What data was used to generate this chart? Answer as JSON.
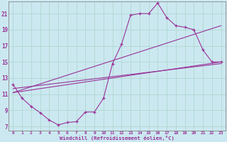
{
  "xlabel": "Windchill (Refroidissement éolien,°C)",
  "bg_color": "#cbe8f0",
  "grid_color": "#aad4cc",
  "line_color": "#993399",
  "spine_color": "#888888",
  "xlim": [
    -0.5,
    23.5
  ],
  "ylim": [
    6.5,
    22.5
  ],
  "xticks": [
    0,
    1,
    2,
    3,
    4,
    5,
    6,
    7,
    8,
    9,
    10,
    11,
    12,
    13,
    14,
    15,
    16,
    17,
    18,
    19,
    20,
    21,
    22,
    23
  ],
  "yticks": [
    7,
    9,
    11,
    13,
    15,
    17,
    19,
    21
  ],
  "main_curve_x": [
    0,
    1,
    2,
    3,
    4,
    5,
    6,
    7,
    8,
    9,
    10,
    11,
    12,
    13,
    14,
    15,
    16,
    17,
    18,
    19,
    20,
    21,
    22,
    23
  ],
  "main_curve_y": [
    12.2,
    10.5,
    9.5,
    8.7,
    7.8,
    7.2,
    7.5,
    7.6,
    8.8,
    8.8,
    10.5,
    14.8,
    17.2,
    20.8,
    21.0,
    21.0,
    22.3,
    20.5,
    19.5,
    19.3,
    19.0,
    16.5,
    15.0,
    15.0
  ],
  "line1_x": [
    0,
    23
  ],
  "line1_y": [
    11.2,
    19.5
  ],
  "line2_x": [
    0,
    23
  ],
  "line2_y": [
    11.2,
    15.0
  ],
  "line3_x": [
    0,
    23
  ],
  "line3_y": [
    11.7,
    14.8
  ]
}
